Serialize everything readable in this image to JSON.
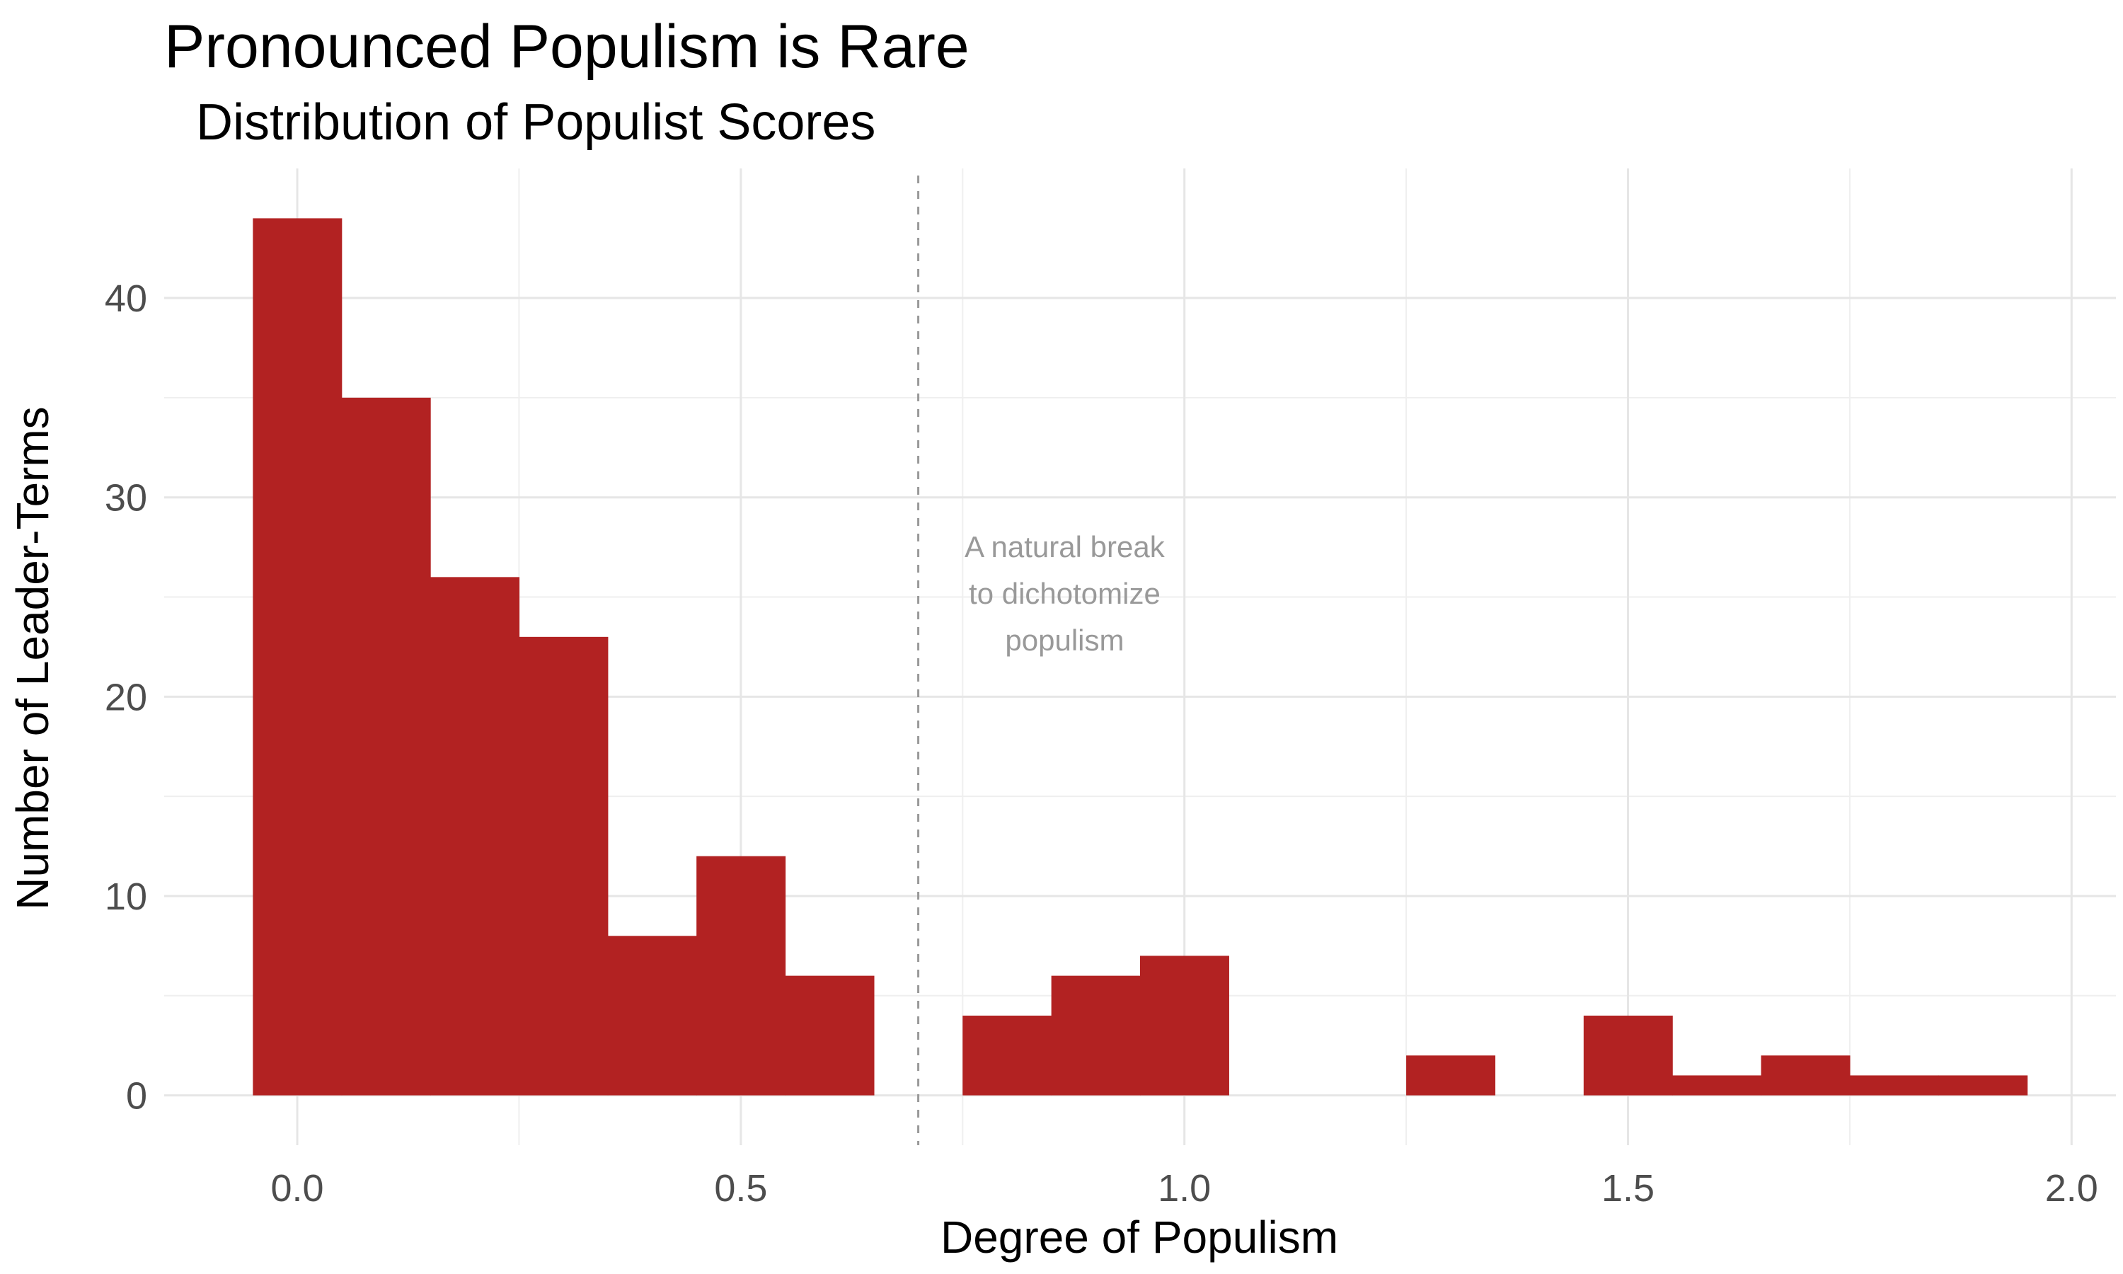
{
  "chart_data": {
    "type": "bar",
    "title": "Pronounced Populism is Rare",
    "subtitle": "Distribution of Populist Scores",
    "xlabel": "Degree of Populism",
    "ylabel": "Number of Leader-Terms",
    "xlim": [
      -0.15,
      2.05
    ],
    "ylim": [
      -2.5,
      46.5
    ],
    "bin_width": 0.1,
    "x_ticks": [
      0.0,
      0.5,
      1.0,
      1.5,
      2.0
    ],
    "x_tick_labels": [
      "0.0",
      "0.5",
      "1.0",
      "1.5",
      "2.0"
    ],
    "y_ticks": [
      0,
      10,
      20,
      30,
      40
    ],
    "y_tick_labels": [
      "0",
      "10",
      "20",
      "30",
      "40"
    ],
    "bins": [
      {
        "center": 0.0,
        "count": 44
      },
      {
        "center": 0.1,
        "count": 35
      },
      {
        "center": 0.2,
        "count": 26
      },
      {
        "center": 0.3,
        "count": 23
      },
      {
        "center": 0.4,
        "count": 8
      },
      {
        "center": 0.5,
        "count": 12
      },
      {
        "center": 0.6,
        "count": 6
      },
      {
        "center": 0.7,
        "count": 0
      },
      {
        "center": 0.8,
        "count": 4
      },
      {
        "center": 0.9,
        "count": 6
      },
      {
        "center": 1.0,
        "count": 7
      },
      {
        "center": 1.1,
        "count": 0
      },
      {
        "center": 1.2,
        "count": 0
      },
      {
        "center": 1.3,
        "count": 2
      },
      {
        "center": 1.4,
        "count": 0
      },
      {
        "center": 1.5,
        "count": 4
      },
      {
        "center": 1.6,
        "count": 1
      },
      {
        "center": 1.7,
        "count": 2
      },
      {
        "center": 1.8,
        "count": 1
      },
      {
        "center": 1.9,
        "count": 1
      }
    ],
    "reference_line": {
      "x": 0.7,
      "style": "dashed"
    },
    "annotation": {
      "lines": [
        "A natural break",
        "to dichotomize",
        "populism"
      ],
      "x": 0.865,
      "y": 27
    },
    "grid": true,
    "legend": "none",
    "colors": {
      "bar": "#b22222",
      "grid": "#e6e6e6",
      "reference_line": "#999999",
      "annotation": "#999999",
      "tick_label": "#4d4d4d"
    }
  }
}
